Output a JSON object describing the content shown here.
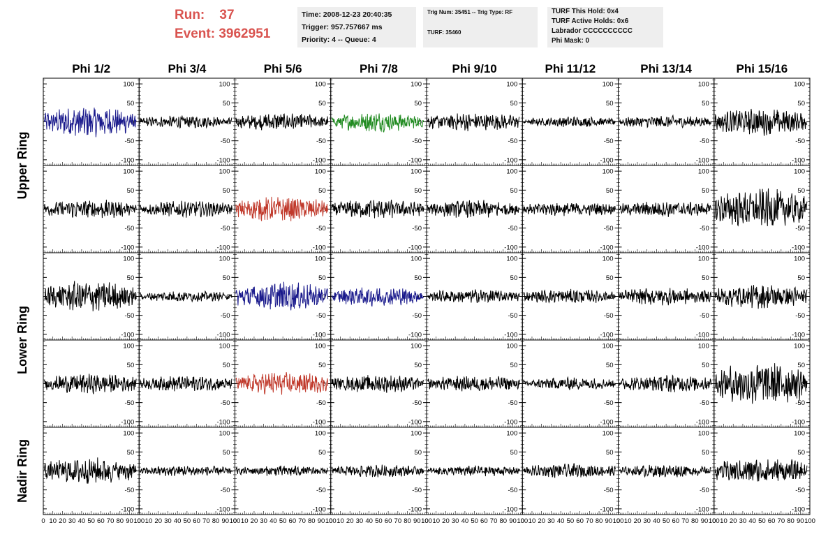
{
  "header": {
    "run_label": "Run:",
    "run_value": "37",
    "event_label": "Event:",
    "event_value": "3962951",
    "info_box_1": {
      "time": "Time: 2008-12-23 20:40:35",
      "trigger": "Trigger: 957.757667 ms",
      "priority": "Priority: 4 -- Queue: 4"
    },
    "info_box_2": {
      "trig_num": "Trig Num: 35451 -- Trig Type: RF",
      "turf": "TURF: 35460"
    },
    "info_box_3": {
      "turf_hold": "TURF This Hold: 0x4",
      "turf_active": "TURF Active Holds: 0x6",
      "labrador": "Labrador CCCCCCCCCC",
      "phi_mask": "Phi Mask: 0"
    }
  },
  "chart_data": {
    "type": "line",
    "columns": [
      "Phi 1/2",
      "Phi 3/4",
      "Phi 5/6",
      "Phi 7/8",
      "Phi 9/10",
      "Phi 11/12",
      "Phi 13/14",
      "Phi 15/16"
    ],
    "ring_labels": [
      {
        "name": "Upper Ring",
        "rows": [
          0,
          1
        ]
      },
      {
        "name": "Lower Ring",
        "rows": [
          2,
          3
        ]
      },
      {
        "name": "Nadir Ring",
        "rows": [
          4
        ]
      }
    ],
    "ylim": [
      -115,
      115
    ],
    "xlim": [
      0,
      100
    ],
    "y_ticks": [
      -100,
      -50,
      0,
      50,
      100
    ],
    "x_tick_labels": [
      "0",
      "10",
      "20",
      "30",
      "40",
      "50",
      "60",
      "70",
      "80",
      "90",
      "100"
    ],
    "colors": {
      "normal": "#000000",
      "blue": "#1a1a8c",
      "green": "#1f8a1f",
      "red": "#c0392b"
    },
    "panels": [
      [
        {
          "amp": 35,
          "color": "blue"
        },
        {
          "amp": 14,
          "color": "normal"
        },
        {
          "amp": 20,
          "color": "normal"
        },
        {
          "amp": 22,
          "color": "green"
        },
        {
          "amp": 20,
          "color": "normal"
        },
        {
          "amp": 12,
          "color": "normal"
        },
        {
          "amp": 14,
          "color": "normal"
        },
        {
          "amp": 30,
          "color": "normal"
        }
      ],
      [
        {
          "amp": 22,
          "color": "normal"
        },
        {
          "amp": 18,
          "color": "normal"
        },
        {
          "amp": 28,
          "color": "red"
        },
        {
          "amp": 22,
          "color": "normal"
        },
        {
          "amp": 20,
          "color": "normal"
        },
        {
          "amp": 16,
          "color": "normal"
        },
        {
          "amp": 18,
          "color": "normal"
        },
        {
          "amp": 45,
          "color": "normal"
        }
      ],
      [
        {
          "amp": 35,
          "color": "normal"
        },
        {
          "amp": 12,
          "color": "normal"
        },
        {
          "amp": 32,
          "color": "blue"
        },
        {
          "amp": 22,
          "color": "blue"
        },
        {
          "amp": 16,
          "color": "normal"
        },
        {
          "amp": 16,
          "color": "normal"
        },
        {
          "amp": 20,
          "color": "normal"
        },
        {
          "amp": 28,
          "color": "normal"
        }
      ],
      [
        {
          "amp": 22,
          "color": "normal"
        },
        {
          "amp": 18,
          "color": "normal"
        },
        {
          "amp": 26,
          "color": "red"
        },
        {
          "amp": 20,
          "color": "normal"
        },
        {
          "amp": 18,
          "color": "normal"
        },
        {
          "amp": 14,
          "color": "normal"
        },
        {
          "amp": 20,
          "color": "normal"
        },
        {
          "amp": 50,
          "color": "normal"
        }
      ],
      [
        {
          "amp": 30,
          "color": "normal"
        },
        {
          "amp": 12,
          "color": "normal"
        },
        {
          "amp": 12,
          "color": "normal"
        },
        {
          "amp": 14,
          "color": "normal"
        },
        {
          "amp": 12,
          "color": "normal"
        },
        {
          "amp": 16,
          "color": "normal"
        },
        {
          "amp": 14,
          "color": "normal"
        },
        {
          "amp": 30,
          "color": "normal"
        }
      ]
    ]
  }
}
